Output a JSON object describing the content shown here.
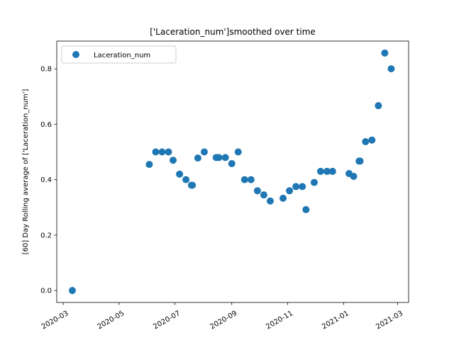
{
  "chart_data": {
    "type": "scatter",
    "title": "['Laceration_num']smoothed over time",
    "xlabel": "",
    "ylabel": "[60] Day Rolling average of ['Laceration_num']",
    "x_axis_type": "date",
    "x_ticks": [
      "2020-03",
      "2020-05",
      "2020-07",
      "2020-09",
      "2020-11",
      "2021-01",
      "2021-03"
    ],
    "y_ticks": [
      "0.0",
      "0.2",
      "0.4",
      "0.6",
      "0.8"
    ],
    "xlim": [
      "2020-02-23",
      "2021-03-13"
    ],
    "ylim": [
      -0.043,
      0.9
    ],
    "grid": false,
    "legend_position": "top-left",
    "marker_color": "#1f77b4",
    "series": [
      {
        "name": "Laceration_num",
        "points": [
          {
            "x": "2020-03-11",
            "y": 0.0
          },
          {
            "x": "2020-06-03",
            "y": 0.455
          },
          {
            "x": "2020-06-10",
            "y": 0.5
          },
          {
            "x": "2020-06-17",
            "y": 0.5
          },
          {
            "x": "2020-06-24",
            "y": 0.5
          },
          {
            "x": "2020-06-29",
            "y": 0.47
          },
          {
            "x": "2020-07-06",
            "y": 0.42
          },
          {
            "x": "2020-07-13",
            "y": 0.4
          },
          {
            "x": "2020-07-19",
            "y": 0.38
          },
          {
            "x": "2020-07-20",
            "y": 0.38
          },
          {
            "x": "2020-07-26",
            "y": 0.478
          },
          {
            "x": "2020-08-02",
            "y": 0.5
          },
          {
            "x": "2020-08-15",
            "y": 0.48
          },
          {
            "x": "2020-08-18",
            "y": 0.48
          },
          {
            "x": "2020-08-25",
            "y": 0.48
          },
          {
            "x": "2020-09-01",
            "y": 0.458
          },
          {
            "x": "2020-09-08",
            "y": 0.5
          },
          {
            "x": "2020-09-15",
            "y": 0.4
          },
          {
            "x": "2020-09-22",
            "y": 0.4
          },
          {
            "x": "2020-09-29",
            "y": 0.36
          },
          {
            "x": "2020-10-06",
            "y": 0.345
          },
          {
            "x": "2020-10-13",
            "y": 0.323
          },
          {
            "x": "2020-10-27",
            "y": 0.333
          },
          {
            "x": "2020-11-03",
            "y": 0.36
          },
          {
            "x": "2020-11-10",
            "y": 0.375
          },
          {
            "x": "2020-11-17",
            "y": 0.375
          },
          {
            "x": "2020-11-21",
            "y": 0.292
          },
          {
            "x": "2020-11-30",
            "y": 0.39
          },
          {
            "x": "2020-12-07",
            "y": 0.43
          },
          {
            "x": "2020-12-14",
            "y": 0.43
          },
          {
            "x": "2020-12-20",
            "y": 0.43
          },
          {
            "x": "2021-01-07",
            "y": 0.422
          },
          {
            "x": "2021-01-12",
            "y": 0.412
          },
          {
            "x": "2021-01-18",
            "y": 0.467
          },
          {
            "x": "2021-01-19",
            "y": 0.467
          },
          {
            "x": "2021-01-25",
            "y": 0.537
          },
          {
            "x": "2021-02-01",
            "y": 0.543
          },
          {
            "x": "2021-02-08",
            "y": 0.667
          },
          {
            "x": "2021-02-15",
            "y": 0.857
          },
          {
            "x": "2021-02-22",
            "y": 0.8
          }
        ]
      }
    ]
  }
}
